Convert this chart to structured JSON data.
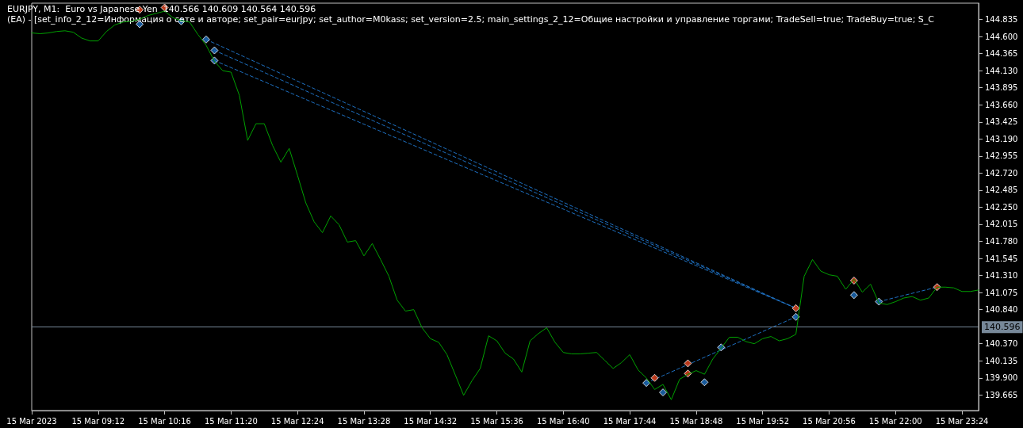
{
  "chart_data": {
    "type": "line",
    "title": "EURJPY, M1:  Euro vs Japanese Yen  140.566 140.609 140.564 140.596",
    "subtitle": "(EA) - [set_info_2_12=Информация о сете и авторе; set_pair=eurjpy; set_author=M0kass; set_version=2.5; main_settings_2_12=Общие настройки и управление торгами; TradeSell=true; TradeBuy=true; S_C",
    "categories": [
      "15 Mar 2023",
      null,
      null,
      null,
      null,
      null,
      null,
      null,
      "15 Mar 09:12",
      null,
      null,
      null,
      null,
      null,
      null,
      null,
      "15 Mar 10:16",
      null,
      null,
      null,
      null,
      null,
      null,
      null,
      "15 Mar 11:20",
      null,
      null,
      null,
      null,
      null,
      null,
      null,
      "15 Mar 12:24",
      null,
      null,
      null,
      null,
      null,
      null,
      null,
      "15 Mar 13:28",
      null,
      null,
      null,
      null,
      null,
      null,
      null,
      "15 Mar 14:32",
      null,
      null,
      null,
      null,
      null,
      null,
      null,
      "15 Mar 15:36",
      null,
      null,
      null,
      null,
      null,
      null,
      null,
      "15 Mar 16:40",
      null,
      null,
      null,
      null,
      null,
      null,
      null,
      "15 Mar 17:44",
      null,
      null,
      null,
      null,
      null,
      null,
      null,
      "15 Mar 18:48",
      null,
      null,
      null,
      null,
      null,
      null,
      null,
      "15 Mar 19:52",
      null,
      null,
      null,
      null,
      null,
      null,
      null,
      "15 Mar 20:56",
      null,
      null,
      null,
      null,
      null,
      null,
      null,
      "15 Mar 22:00",
      null,
      null,
      null,
      null,
      null,
      null,
      null,
      "15 Mar 23:24",
      null,
      null
    ],
    "series": [
      {
        "color": "#00a000",
        "marker": "none",
        "values": [
          144.65,
          144.64,
          144.65,
          144.67,
          144.68,
          144.66,
          144.58,
          144.54,
          144.54,
          144.67,
          144.76,
          144.8,
          144.81,
          144.84,
          144.89,
          144.92,
          144.95,
          144.86,
          144.82,
          144.8,
          144.63,
          144.48,
          144.26,
          144.13,
          144.11,
          143.79,
          143.17,
          143.4,
          143.4,
          143.1,
          142.87,
          143.06,
          142.69,
          142.31,
          142.05,
          141.9,
          142.13,
          142.01,
          141.77,
          141.79,
          141.58,
          141.75,
          141.53,
          141.3,
          140.97,
          140.82,
          140.84,
          140.59,
          140.44,
          140.39,
          140.22,
          139.94,
          139.66,
          139.86,
          140.03,
          140.48,
          140.41,
          140.24,
          140.16,
          139.98,
          140.41,
          140.51,
          140.59,
          140.39,
          140.25,
          140.23,
          140.23,
          140.24,
          140.25,
          140.14,
          140.03,
          140.11,
          140.22,
          140.01,
          139.9,
          139.74,
          139.81,
          139.6,
          139.88,
          139.95,
          140.0,
          139.95,
          140.16,
          140.31,
          140.46,
          140.46,
          140.4,
          140.37,
          140.44,
          140.47,
          140.41,
          140.44,
          140.5,
          141.3,
          141.53,
          141.37,
          141.32,
          141.3,
          141.12,
          141.26,
          141.08,
          141.19,
          140.93,
          140.91,
          140.95,
          141.0,
          141.02,
          140.97,
          141.0,
          141.15,
          141.15,
          141.14,
          141.09,
          141.09,
          141.11
        ]
      },
      {
        "type": "line",
        "color": "#1e6fbf",
        "marker": "none",
        "line_style": "dashed",
        "values": [
          null,
          null,
          null,
          null,
          null,
          null,
          null,
          null,
          null,
          null,
          null,
          null,
          null,
          null,
          null,
          null,
          null,
          null,
          null,
          null,
          null,
          144.56,
          null,
          null,
          null,
          null,
          null,
          null,
          null,
          null,
          null,
          null,
          null,
          null,
          null,
          null,
          null,
          null,
          null,
          null,
          null,
          null,
          null,
          null,
          null,
          null,
          null,
          null,
          null,
          null,
          null,
          null,
          null,
          null,
          null,
          null,
          null,
          null,
          null,
          null,
          null,
          null,
          null,
          null,
          null,
          null,
          null,
          null,
          null,
          null,
          null,
          null,
          null,
          null,
          null,
          null,
          null,
          null,
          null,
          null,
          null,
          null,
          null,
          null,
          null,
          null,
          null,
          null,
          null,
          null,
          null,
          null,
          140.86,
          null,
          null,
          null,
          null,
          null,
          null,
          null,
          null,
          null,
          null,
          null,
          null,
          null,
          null,
          null,
          null,
          null,
          null,
          null,
          null,
          null,
          null
        ]
      },
      {
        "type": "line",
        "color": "#1e6fbf",
        "marker": "none",
        "line_style": "dashed",
        "values": [
          null,
          null,
          null,
          null,
          null,
          null,
          null,
          null,
          null,
          null,
          null,
          null,
          null,
          null,
          null,
          null,
          null,
          null,
          null,
          null,
          null,
          null,
          144.41,
          null,
          null,
          null,
          null,
          null,
          null,
          null,
          null,
          null,
          null,
          null,
          null,
          null,
          null,
          null,
          null,
          null,
          null,
          null,
          null,
          null,
          null,
          null,
          null,
          null,
          null,
          null,
          null,
          null,
          null,
          null,
          null,
          null,
          null,
          null,
          null,
          null,
          null,
          null,
          null,
          null,
          null,
          null,
          null,
          null,
          null,
          null,
          null,
          null,
          null,
          null,
          null,
          null,
          null,
          null,
          null,
          null,
          null,
          null,
          null,
          null,
          null,
          null,
          null,
          null,
          null,
          null,
          null,
          null,
          140.86,
          null,
          null,
          null,
          null,
          null,
          null,
          null,
          null,
          null,
          null,
          null,
          null,
          null,
          null,
          null,
          null,
          null,
          null,
          null,
          null,
          null,
          null
        ]
      },
      {
        "type": "line",
        "color": "#1e6fbf",
        "marker": "none",
        "line_style": "dashed",
        "values": [
          null,
          null,
          null,
          null,
          null,
          null,
          null,
          null,
          null,
          null,
          null,
          null,
          null,
          null,
          null,
          null,
          null,
          null,
          null,
          null,
          null,
          null,
          144.27,
          null,
          null,
          null,
          null,
          null,
          null,
          null,
          null,
          null,
          null,
          null,
          null,
          null,
          null,
          null,
          null,
          null,
          null,
          null,
          null,
          null,
          null,
          null,
          null,
          null,
          null,
          null,
          null,
          null,
          null,
          null,
          null,
          null,
          null,
          null,
          null,
          null,
          null,
          null,
          null,
          null,
          null,
          null,
          null,
          null,
          null,
          null,
          null,
          null,
          null,
          null,
          null,
          null,
          null,
          null,
          null,
          null,
          null,
          null,
          null,
          null,
          null,
          null,
          null,
          null,
          null,
          null,
          null,
          null,
          140.86,
          null,
          null,
          null,
          null,
          null,
          null,
          null,
          null,
          null,
          null,
          null,
          null,
          null,
          null,
          null,
          null,
          null,
          null,
          null,
          null,
          null,
          null
        ]
      },
      {
        "type": "line",
        "color": "#1e6fbf",
        "marker": "none",
        "line_style": "dashed",
        "values": [
          null,
          null,
          null,
          null,
          null,
          null,
          null,
          null,
          null,
          null,
          null,
          null,
          null,
          null,
          null,
          null,
          null,
          null,
          null,
          null,
          null,
          null,
          null,
          null,
          null,
          null,
          null,
          null,
          null,
          null,
          null,
          null,
          null,
          null,
          null,
          null,
          null,
          null,
          null,
          null,
          null,
          null,
          null,
          null,
          null,
          null,
          null,
          null,
          null,
          null,
          null,
          null,
          null,
          null,
          null,
          null,
          null,
          null,
          null,
          null,
          null,
          null,
          null,
          null,
          null,
          null,
          null,
          null,
          null,
          null,
          null,
          null,
          null,
          null,
          139.83,
          null,
          null,
          null,
          null,
          null,
          null,
          null,
          null,
          null,
          null,
          null,
          null,
          null,
          null,
          null,
          null,
          null,
          140.74,
          null,
          null,
          null,
          null,
          null,
          null,
          null,
          null,
          null,
          null,
          null,
          null,
          null,
          null,
          null,
          null,
          null,
          null,
          null,
          null,
          null,
          null
        ]
      },
      {
        "type": "line",
        "color": "#1e6fbf",
        "marker": "none",
        "line_style": "dashed",
        "values": [
          null,
          null,
          null,
          null,
          null,
          null,
          null,
          null,
          null,
          null,
          null,
          null,
          null,
          null,
          null,
          null,
          null,
          null,
          null,
          null,
          null,
          null,
          null,
          null,
          null,
          null,
          null,
          null,
          null,
          null,
          null,
          null,
          null,
          null,
          null,
          null,
          null,
          null,
          null,
          null,
          null,
          null,
          null,
          null,
          null,
          null,
          null,
          null,
          null,
          null,
          null,
          null,
          null,
          null,
          null,
          null,
          null,
          null,
          null,
          null,
          null,
          null,
          null,
          null,
          null,
          null,
          null,
          null,
          null,
          null,
          null,
          null,
          null,
          null,
          null,
          null,
          null,
          null,
          null,
          null,
          null,
          null,
          null,
          null,
          null,
          null,
          null,
          null,
          null,
          null,
          null,
          null,
          null,
          null,
          null,
          null,
          null,
          null,
          null,
          null,
          null,
          null,
          140.95,
          null,
          null,
          null,
          null,
          null,
          null,
          141.15,
          null,
          null,
          null,
          null,
          null
        ]
      },
      {
        "type": "scatter",
        "color": "#1e6fbf",
        "marker": "diamond",
        "values": [
          null,
          null,
          null,
          null,
          null,
          null,
          null,
          null,
          null,
          null,
          null,
          null,
          null,
          144.77,
          null,
          null,
          null,
          null,
          144.81,
          null,
          null,
          144.56,
          144.41,
          null,
          null,
          null,
          null,
          null,
          null,
          null,
          null,
          null,
          null,
          null,
          null,
          null,
          null,
          null,
          null,
          null,
          null,
          null,
          null,
          null,
          null,
          null,
          null,
          null,
          null,
          null,
          null,
          null,
          null,
          null,
          null,
          null,
          null,
          null,
          null,
          null,
          null,
          null,
          null,
          null,
          null,
          null,
          null,
          null,
          null,
          null,
          null,
          null,
          null,
          null,
          139.83,
          null,
          139.7,
          null,
          null,
          null,
          null,
          139.84,
          null,
          140.32,
          null,
          null,
          null,
          null,
          null,
          null,
          null,
          null,
          140.74,
          null,
          null,
          null,
          null,
          null,
          null,
          141.04,
          null,
          null,
          140.95,
          null,
          null,
          null,
          null,
          null,
          null,
          null,
          null,
          null,
          null,
          null,
          null
        ]
      },
      {
        "type": "scatter",
        "color": "#1e6fbf",
        "marker": "diamond",
        "values": [
          null,
          null,
          null,
          null,
          null,
          null,
          null,
          null,
          null,
          null,
          null,
          null,
          null,
          null,
          null,
          null,
          null,
          null,
          null,
          null,
          null,
          null,
          144.27,
          null,
          null,
          null,
          null,
          null,
          null,
          null,
          null,
          null,
          null,
          null,
          null,
          null,
          null,
          null,
          null,
          null,
          null,
          null,
          null,
          null,
          null,
          null,
          null,
          null,
          null,
          null,
          null,
          null,
          null,
          null,
          null,
          null,
          null,
          null,
          null,
          null,
          null,
          null,
          null,
          null,
          null,
          null,
          null,
          null,
          null,
          null,
          null,
          null,
          null,
          null,
          null,
          null,
          null,
          null,
          null,
          null,
          null,
          null,
          null,
          null,
          null,
          null,
          null,
          null,
          null,
          null,
          null,
          null,
          null,
          null,
          null,
          null,
          null,
          null,
          null,
          null,
          null,
          null,
          null,
          null,
          null,
          null,
          null,
          null,
          null,
          null,
          null,
          null,
          null,
          null,
          null
        ]
      },
      {
        "type": "scatter",
        "color": "#e8451e",
        "marker": "diamond",
        "values": [
          null,
          null,
          null,
          null,
          null,
          null,
          null,
          null,
          null,
          null,
          null,
          null,
          null,
          144.97,
          null,
          null,
          145.0,
          null,
          null,
          null,
          null,
          null,
          null,
          null,
          null,
          null,
          null,
          null,
          null,
          null,
          null,
          null,
          null,
          null,
          null,
          null,
          null,
          null,
          null,
          null,
          null,
          null,
          null,
          null,
          null,
          null,
          null,
          null,
          null,
          null,
          null,
          null,
          null,
          null,
          null,
          null,
          null,
          null,
          null,
          null,
          null,
          null,
          null,
          null,
          null,
          null,
          null,
          null,
          null,
          null,
          null,
          null,
          null,
          null,
          null,
          139.9,
          null,
          null,
          null,
          140.1,
          null,
          null,
          null,
          null,
          null,
          null,
          null,
          null,
          null,
          null,
          null,
          null,
          140.86,
          null,
          null,
          null,
          null,
          null,
          null,
          141.24,
          null,
          null,
          null,
          null,
          null,
          null,
          null,
          null,
          null,
          141.15,
          null,
          null,
          null,
          null,
          null
        ]
      },
      {
        "type": "scatter",
        "color": "#e8451e",
        "marker": "diamond",
        "values": [
          null,
          null,
          null,
          null,
          null,
          null,
          null,
          null,
          null,
          null,
          null,
          null,
          null,
          null,
          null,
          null,
          null,
          null,
          null,
          null,
          null,
          null,
          null,
          null,
          null,
          null,
          null,
          null,
          null,
          null,
          null,
          null,
          null,
          null,
          null,
          null,
          null,
          null,
          null,
          null,
          null,
          null,
          null,
          null,
          null,
          null,
          null,
          null,
          null,
          null,
          null,
          null,
          null,
          null,
          null,
          null,
          null,
          null,
          null,
          null,
          null,
          null,
          null,
          null,
          null,
          null,
          null,
          null,
          null,
          null,
          null,
          null,
          null,
          null,
          null,
          null,
          null,
          null,
          null,
          139.96,
          null,
          null,
          null,
          null,
          null,
          null,
          null,
          null,
          null,
          null,
          null,
          null,
          null,
          null,
          null,
          null,
          null,
          null,
          null,
          null,
          null,
          null,
          null,
          null,
          null,
          null,
          null,
          null,
          null,
          null,
          null,
          null,
          null,
          null,
          null
        ]
      }
    ],
    "ylim": [
      139.45,
      145.06
    ],
    "yticks": [
      139.665,
      {
        "value": 139.9,
        "label": "139.900"
      },
      140.135,
      {
        "value": 140.37,
        "label": "140.370"
      },
      {
        "value": 140.84,
        "label": "140.840"
      },
      141.075,
      {
        "value": 141.31,
        "label": "141.310"
      },
      141.545,
      {
        "value": 141.78,
        "label": "141.780"
      },
      142.015,
      {
        "value": 142.25,
        "label": "142.250"
      },
      142.485,
      {
        "value": 142.72,
        "label": "142.720"
      },
      142.955,
      {
        "value": 143.19,
        "label": "143.190"
      },
      143.425,
      {
        "value": 143.66,
        "label": "143.660"
      },
      143.895,
      {
        "value": 144.13,
        "label": "144.130"
      },
      144.365,
      {
        "value": 144.6,
        "label": "144.600"
      },
      144.835
    ],
    "ref_lines": [
      {
        "axis": "y",
        "value": 140.596,
        "label": "140.596",
        "color": "#778899"
      }
    ]
  }
}
